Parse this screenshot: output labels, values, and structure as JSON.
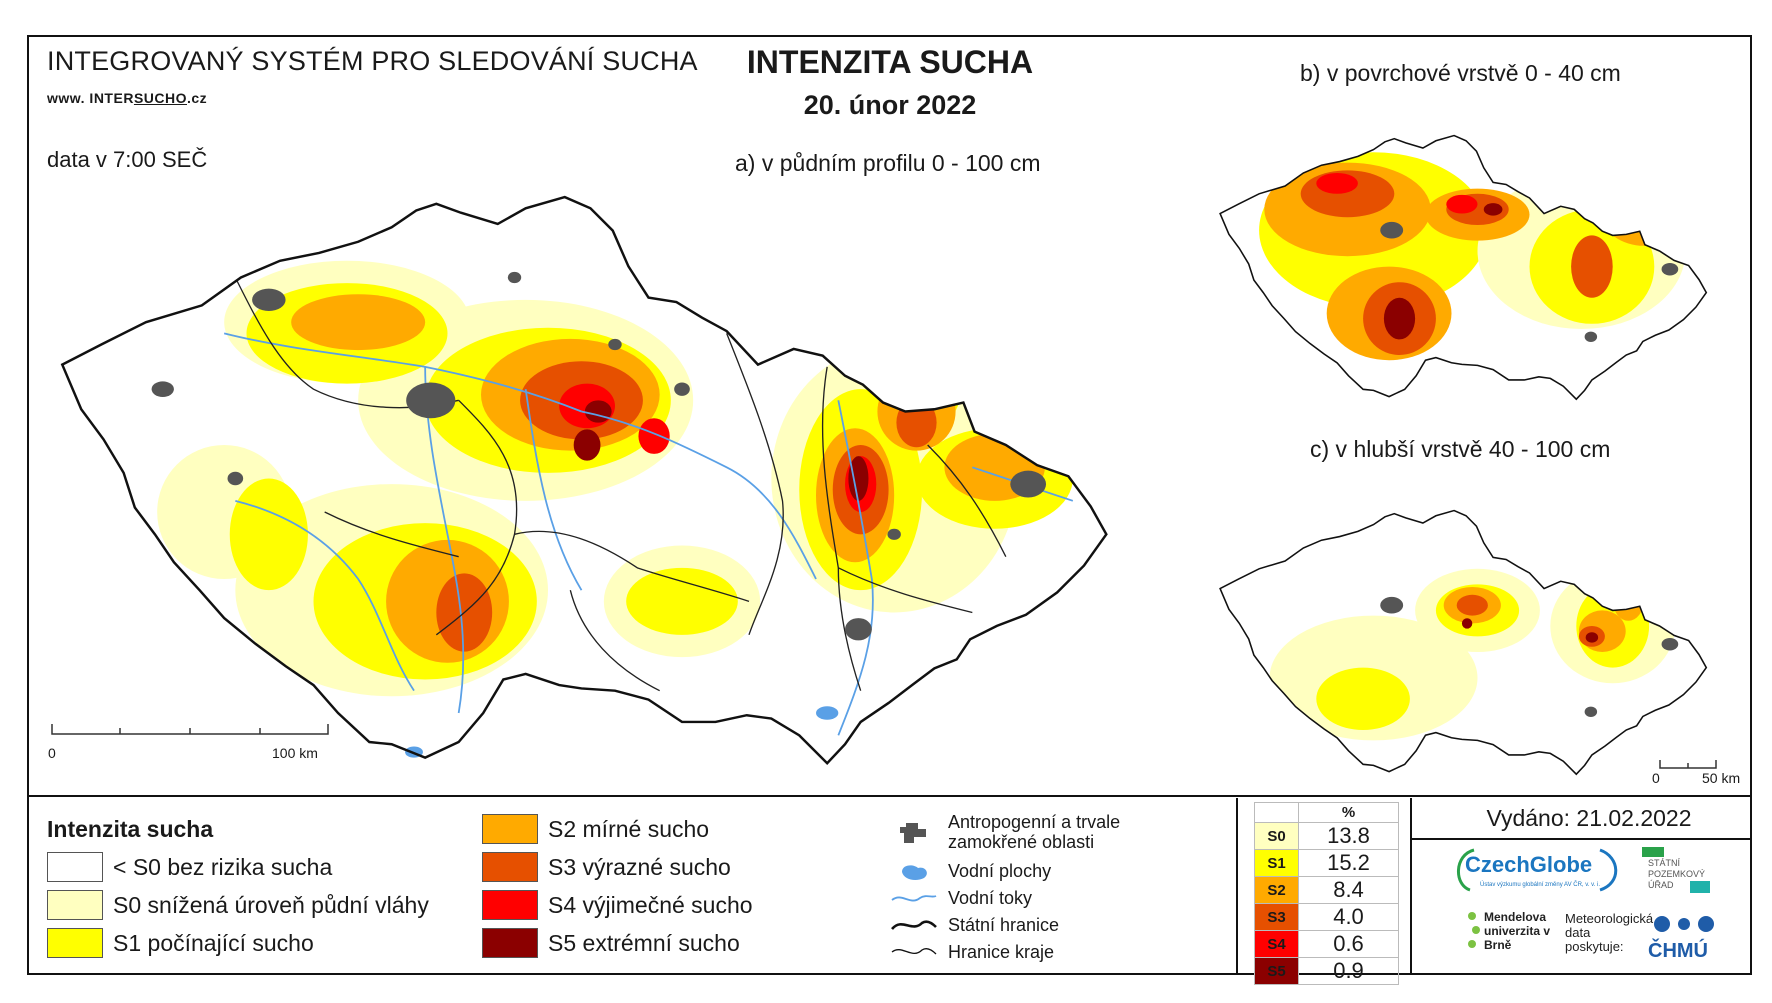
{
  "header": {
    "system_title": "INTEGROVANÝ SYSTÉM PRO SLEDOVÁNÍ SUCHA",
    "website_prefix": "www. INTER",
    "website_mid": "SUCHO",
    "website_suffix": ".cz",
    "data_time": "data v 7:00 SEČ",
    "main_title": "INTENZITA SUCHA",
    "date": "20. únor 2022"
  },
  "maps": {
    "main_label": "a) v půdním profilu 0 - 100 cm",
    "surface_label": "b) v povrchové vrstvě 0 - 40 cm",
    "deep_label": "c) v hlubší vrstvě 40 - 100 cm",
    "main_scale": {
      "start": "0",
      "end": "100 km"
    },
    "small_scale": {
      "start": "0",
      "end": "50 km"
    }
  },
  "legend": {
    "title": "Intenzita sucha",
    "classes": [
      {
        "code": "<S0",
        "label": "< S0 bez rizika sucha",
        "color": "#ffffff"
      },
      {
        "code": "S0",
        "label": "S0 snížená úroveň půdní vláhy",
        "color": "#ffffc0"
      },
      {
        "code": "S1",
        "label": "S1 počínající sucho",
        "color": "#ffff00"
      },
      {
        "code": "S2",
        "label": "S2 mírné sucho",
        "color": "#ffaa00"
      },
      {
        "code": "S3",
        "label": "S3 výrazné sucho",
        "color": "#e65000"
      },
      {
        "code": "S4",
        "label": "S4 výjimečné sucho",
        "color": "#ff0000"
      },
      {
        "code": "S5",
        "label": "S5 extrémní sucho",
        "color": "#8b0000"
      }
    ],
    "layers": [
      {
        "icon": "urban-area-icon",
        "label_line1": "Antropogenní a trvale",
        "label_line2": "zamokřené oblasti"
      },
      {
        "icon": "water-body-icon",
        "label_line1": "Vodní plochy"
      },
      {
        "icon": "river-icon",
        "label_line1": "Vodní toky"
      },
      {
        "icon": "state-border-icon",
        "label_line1": "Státní hranice"
      },
      {
        "icon": "region-border-icon",
        "label_line1": "Hranice kraje"
      }
    ]
  },
  "percentages": {
    "header": "%",
    "rows": [
      {
        "code": "S0",
        "value": "13.8",
        "color": "#ffffc0"
      },
      {
        "code": "S1",
        "value": "15.2",
        "color": "#ffff00"
      },
      {
        "code": "S2",
        "value": "8.4",
        "color": "#ffaa00"
      },
      {
        "code": "S3",
        "value": "4.0",
        "color": "#e65000"
      },
      {
        "code": "S4",
        "value": "0.6",
        "color": "#ff0000"
      },
      {
        "code": "S5",
        "value": "0.9",
        "color": "#8b0000"
      }
    ]
  },
  "footer": {
    "issued": "Vydáno: 21.02.2022",
    "logo_czechglobe": "CzechGlobe",
    "logo_czechglobe_sub": "Ústav výzkumu globální změny AV ČR, v. v. i.",
    "logo_spu": "STÁTNÍ POZEMKOVÝ ÚŘAD",
    "logo_mendel": "Mendelova univerzita v Brně",
    "met_data": "Meteorologická data poskytuje:",
    "logo_chmu": "ČHMÚ"
  }
}
